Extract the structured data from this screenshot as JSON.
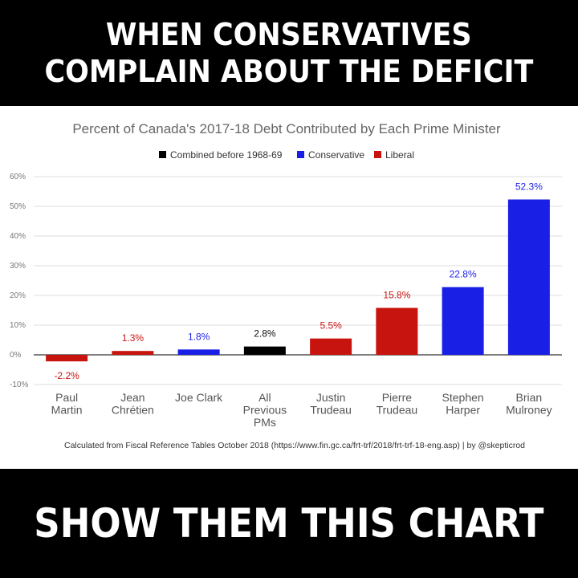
{
  "header": {
    "line1": "WHEN CONSERVATIVES",
    "line2": "COMPLAIN ABOUT THE DEFICIT"
  },
  "footer": {
    "text": "SHOW THEM THIS CHART"
  },
  "colors": {
    "combined": "#000000",
    "conservative": "#1a1fe6",
    "liberal": "#c8140e",
    "grid": "#dcdcdc"
  },
  "chart_data": {
    "type": "bar",
    "title": "Percent of Canada's 2017-18 Debt Contributed by Each Prime Minister",
    "legend": [
      {
        "label": "Combined before 1968-69",
        "color": "#000000"
      },
      {
        "label": "Conservative",
        "color": "#1a1fe6"
      },
      {
        "label": "Liberal",
        "color": "#c8140e"
      }
    ],
    "legend_position": "top-center",
    "ylim": [
      -10,
      60
    ],
    "yticks": [
      -10,
      0,
      10,
      20,
      30,
      40,
      50,
      60
    ],
    "ytick_labels": [
      "-10%",
      "0%",
      "10%",
      "20%",
      "30%",
      "40%",
      "50%",
      "60%"
    ],
    "grid": true,
    "categories": [
      [
        "Paul",
        "Martin"
      ],
      [
        "Jean",
        "Chrétien"
      ],
      [
        "Joe Clark"
      ],
      [
        "All",
        "Previous",
        "PMs"
      ],
      [
        "Justin",
        "Trudeau"
      ],
      [
        "Pierre",
        "Trudeau"
      ],
      [
        "Stephen",
        "Harper"
      ],
      [
        "Brian",
        "Mulroney"
      ]
    ],
    "values": [
      -2.2,
      1.3,
      1.8,
      2.8,
      5.5,
      15.8,
      22.8,
      52.3
    ],
    "value_labels": [
      "-2.2%",
      "1.3%",
      "1.8%",
      "2.8%",
      "5.5%",
      "15.8%",
      "22.8%",
      "52.3%"
    ],
    "groups": [
      "liberal",
      "liberal",
      "conservative",
      "combined",
      "liberal",
      "liberal",
      "conservative",
      "conservative"
    ],
    "source": "Calculated from Fiscal Reference Tables October 2018 (https://www.fin.gc.ca/frt-trf/2018/frt-trf-18-eng.asp) | by @skepticrod"
  }
}
